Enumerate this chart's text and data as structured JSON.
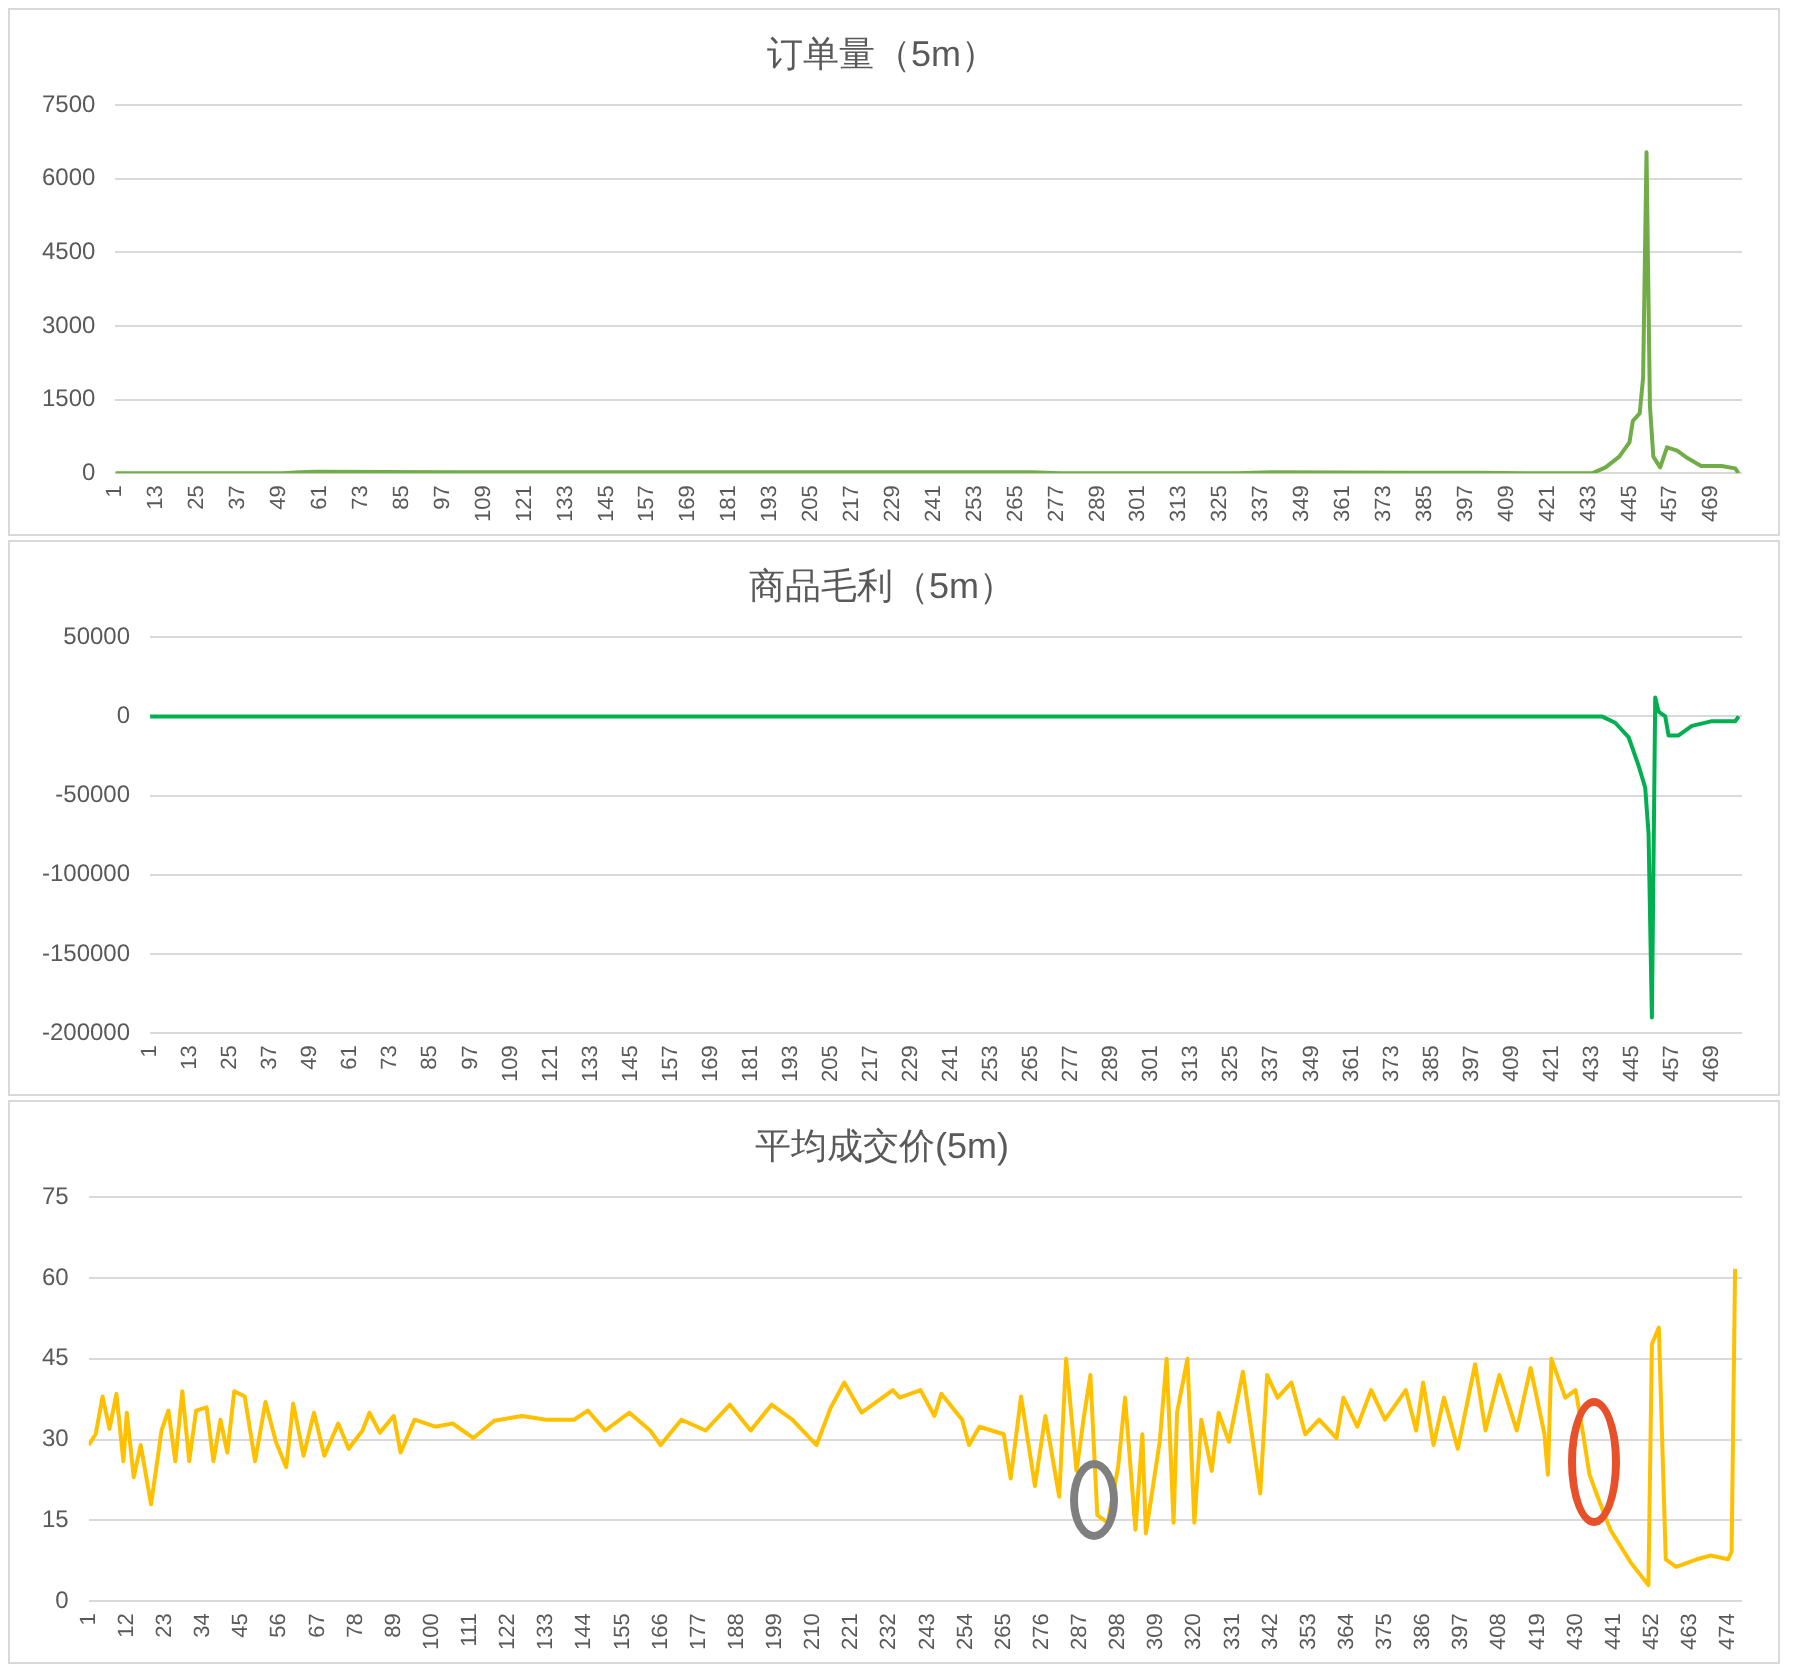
{
  "chart_data": [
    {
      "type": "line",
      "title": "订单量（5m）",
      "xlim": [
        1,
        478
      ],
      "xticks": [
        1,
        13,
        25,
        37,
        49,
        61,
        73,
        85,
        97,
        109,
        121,
        133,
        145,
        157,
        169,
        181,
        193,
        205,
        217,
        229,
        241,
        253,
        265,
        277,
        289,
        301,
        313,
        325,
        337,
        349,
        361,
        373,
        385,
        397,
        409,
        421,
        433,
        445,
        457,
        469
      ],
      "ylim": [
        0,
        7500
      ],
      "yticks": [
        0,
        1500,
        3000,
        4500,
        6000,
        7500
      ],
      "grid": "y",
      "series": [
        {
          "color": "#70ad47",
          "x": [
            1,
            50,
            55,
            60,
            100,
            150,
            200,
            250,
            270,
            278,
            330,
            340,
            380,
            400,
            420,
            434,
            438,
            442,
            445,
            446,
            448,
            449,
            450,
            451,
            452,
            454,
            456,
            459,
            462,
            466,
            472,
            476,
            477
          ],
          "values": [
            0,
            0,
            20,
            30,
            20,
            20,
            20,
            20,
            20,
            0,
            0,
            20,
            10,
            10,
            0,
            0,
            120,
            340,
            630,
            1070,
            1220,
            1950,
            6540,
            1370,
            340,
            120,
            530,
            460,
            310,
            150,
            150,
            100,
            0
          ]
        }
      ]
    },
    {
      "type": "line",
      "title": "商品毛利（5m）",
      "xlim": [
        1,
        478
      ],
      "xticks": [
        1,
        13,
        25,
        37,
        49,
        61,
        73,
        85,
        97,
        109,
        121,
        133,
        145,
        157,
        169,
        181,
        193,
        205,
        217,
        229,
        241,
        253,
        265,
        277,
        289,
        301,
        313,
        325,
        337,
        349,
        361,
        373,
        385,
        397,
        409,
        421,
        433,
        445,
        457,
        469
      ],
      "ylim": [
        -200000,
        50000
      ],
      "yticks": [
        -200000,
        -150000,
        -100000,
        -50000,
        0,
        50000
      ],
      "grid": "y",
      "series": [
        {
          "color": "#00b050",
          "x": [
            1,
            436,
            440,
            444,
            447,
            449,
            450,
            451,
            452,
            453,
            455,
            456,
            459,
            463,
            469,
            476,
            477
          ],
          "values": [
            0,
            0,
            -4000,
            -13000,
            -31000,
            -45000,
            -74000,
            -190000,
            12000,
            3000,
            0,
            -12000,
            -12000,
            -6000,
            -3000,
            -3000,
            0
          ]
        }
      ]
    },
    {
      "type": "line",
      "title": "平均成交价(5m)",
      "xlim": [
        1,
        478
      ],
      "xticks": [
        1,
        12,
        23,
        34,
        45,
        56,
        67,
        78,
        89,
        100,
        111,
        122,
        133,
        144,
        155,
        166,
        177,
        188,
        199,
        210,
        221,
        232,
        243,
        254,
        265,
        276,
        287,
        298,
        309,
        320,
        331,
        342,
        353,
        364,
        375,
        386,
        397,
        408,
        419,
        430,
        441,
        452,
        463,
        474
      ],
      "ylim": [
        0,
        75
      ],
      "yticks": [
        0,
        15,
        30,
        45,
        60,
        75
      ],
      "grid": "y",
      "series": [
        {
          "color": "#ffc000",
          "x": [
            1,
            3,
            5,
            7,
            9,
            11,
            12,
            14,
            16,
            19,
            21,
            22,
            24,
            26,
            28,
            30,
            32,
            35,
            37,
            39,
            41,
            43,
            46,
            49,
            52,
            55,
            58,
            60,
            63,
            66,
            69,
            73,
            76,
            80,
            82,
            85,
            89,
            91,
            95,
            101,
            106,
            112,
            118,
            126,
            133,
            141,
            145,
            150,
            157,
            163,
            166,
            172,
            179,
            186,
            192,
            198,
            204,
            211,
            215,
            219,
            224,
            233,
            235,
            241,
            245,
            247,
            253,
            255,
            258,
            265,
            267,
            270,
            274,
            277,
            281,
            283,
            286,
            288,
            290,
            292,
            295,
            298,
            300,
            303,
            305,
            306,
            310,
            312,
            314,
            315,
            318,
            320,
            322,
            325,
            327,
            330,
            334,
            336,
            339,
            341,
            344,
            348,
            352,
            356,
            361,
            363,
            367,
            371,
            375,
            381,
            384,
            386,
            389,
            392,
            396,
            401,
            404,
            408,
            413,
            417,
            421,
            422,
            423,
            427,
            430,
            432,
            434,
            436,
            440,
            446,
            451,
            452,
            454,
            456,
            459,
            465,
            469,
            474,
            475,
            476
          ],
          "values": [
            29,
            31,
            38,
            32,
            38.5,
            26,
            35,
            23,
            29,
            18,
            27,
            31.7,
            35.4,
            26,
            39,
            26,
            35.4,
            36,
            26,
            33.7,
            27.6,
            39,
            38,
            26,
            37,
            29.6,
            24.9,
            36.7,
            27,
            35,
            27,
            33,
            28.3,
            31.7,
            35,
            31.3,
            34.4,
            27.6,
            33.7,
            32.4,
            33,
            30.3,
            33.5,
            34.4,
            33.7,
            33.7,
            35.4,
            31.7,
            35,
            31.7,
            29,
            33.7,
            31.7,
            36.5,
            31.7,
            36.5,
            33.7,
            29,
            35.8,
            40.6,
            35,
            39.2,
            37.8,
            39.2,
            34.4,
            38.5,
            33.7,
            29,
            32.4,
            31,
            22.8,
            38,
            21.4,
            34.4,
            19.4,
            45,
            24.2,
            33.7,
            42,
            16,
            14.6,
            24.9,
            37.8,
            13.3,
            31,
            12.6,
            29.6,
            45,
            14.6,
            35,
            45,
            14.6,
            33.7,
            24.2,
            35,
            29.6,
            42.6,
            33.7,
            20,
            42,
            37.8,
            40.6,
            31,
            33.7,
            30.3,
            37.8,
            32.4,
            39.2,
            33.7,
            39.2,
            31.7,
            40.6,
            29,
            37.8,
            28.3,
            44,
            31.7,
            42,
            31.7,
            43.3,
            31,
            23.5,
            45,
            37.8,
            39.2,
            31.7,
            23.5,
            20,
            13.3,
            7.1,
            3,
            47.7,
            50.8,
            7.8,
            6.4,
            7.8,
            8.5,
            7.8,
            9.2,
            61.7
          ]
        }
      ]
    }
  ]
}
